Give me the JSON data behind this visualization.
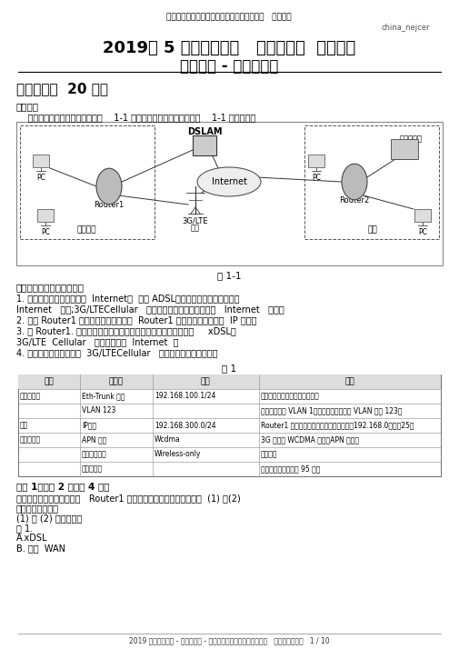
{
  "bg_color": "#ffffff",
  "top_center_text": "全国计算机技术与软件专业技术资格（水平）   、考试库",
  "watermark": "china_nejcer",
  "title_line1": "2019年 5 月上半年下午   网络工程师  考试试题",
  "title_line2": "案例分析 - 答案与解析",
  "section_title": "试题一（共  20 分）",
  "note_label": "【说明】",
  "note_text": "    某企业分支与总部组网方案如图    1-1 所示，企业分支网络规划如表    1-1 内容所示。",
  "fig_caption": "图 1-1",
  "desc_title": "企业分支与总部组网说明：",
  "desc_lines": [
    "1. 企业分支采用双链路接入  Internet，  其中 ADSL有线链路作为企业分支的主",
    "Internet   接口;3G/LTECellular   无线链路作为企业分支的备用   Internet   接口。",
    "2. 指定 Router1 作为企业出口网关，由  Router1 为企业内网用户分配  IP 地址。",
    "3. 在 Router1. 上配置缺省路由，使企业分支内网的流量可以通过     xDSL和",
    "3G/LTE  Cellular   无线链路访问  Internet  。",
    "4. 企业分支与总部之间的  3G/LTECellular   无线链路采用加密传输。"
  ],
  "table_title": "表 1",
  "table_headers": [
    "操作",
    "配置项",
    "配置",
    "说明"
  ],
  "table_rows": [
    [
      "配置下行口",
      "Eth-Trunk 类型",
      "192.168.100.1/24",
      "网卡最普通用于闲置省省地址。"
    ],
    [
      "",
      "VLAN 123",
      "",
      "路由器对缺省 VLAN 1，为内网用户分配的 VLAN 号为 123。"
    ],
    [
      "配置",
      "IP地址",
      "192.168.300.0/24",
      "Router1 有主出接口网关，为企业内网分配192.168.0路由器25。"
    ],
    [
      "配置无线口",
      "APN 名称",
      "Wcdma",
      "3G 网络为 WCDMA 网络，APN 名称按"
    ],
    [
      "",
      "无线接入方式",
      "Wireless-only",
      "需要输入"
    ],
    [
      "",
      "无线接收计",
      "",
      "按照链路设定需要约 95 帧。"
    ]
  ],
  "q1_title": "问题 1（每空 2 分，共 4 分）",
  "q1_lines": [
    "依据组网方案，为企业分支   Router1 配置互联网接口板卡，应该在是  (1) 和(2)",
    "单板中选择配置。",
    "(1) ～ (2) 备选答案示",
    "单 1."
  ],
  "answer_a": "A.xDSL",
  "answer_b": "B. 以太  WAN",
  "footer": "2019 年上半年下午 - 网络工程师 - 下午试题及答案与解析（软考题   一案例分析）、   1 / 10"
}
